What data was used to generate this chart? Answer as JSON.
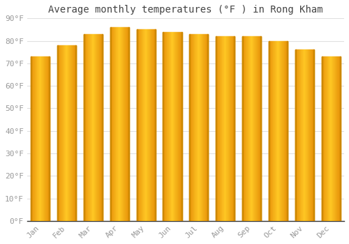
{
  "title": "Average monthly temperatures (°F ) in Rong Kham",
  "months": [
    "Jan",
    "Feb",
    "Mar",
    "Apr",
    "May",
    "Jun",
    "Jul",
    "Aug",
    "Sep",
    "Oct",
    "Nov",
    "Dec"
  ],
  "values": [
    73,
    78,
    83,
    86,
    85,
    84,
    83,
    82,
    82,
    80,
    76,
    73
  ],
  "bar_color_left": "#E8930A",
  "bar_color_center": "#FFC825",
  "bar_color_right": "#E8930A",
  "bar_edge_color": "#CC8800",
  "ylim": [
    0,
    90
  ],
  "yticks": [
    0,
    10,
    20,
    30,
    40,
    50,
    60,
    70,
    80,
    90
  ],
  "ytick_labels": [
    "0°F",
    "10°F",
    "20°F",
    "30°F",
    "40°F",
    "50°F",
    "60°F",
    "70°F",
    "80°F",
    "90°F"
  ],
  "background_color": "#ffffff",
  "plot_bg_color": "#ffffff",
  "grid_color": "#e0e0e0",
  "title_fontsize": 10,
  "tick_fontsize": 8,
  "font_family": "monospace",
  "tick_color": "#999999",
  "spine_color": "#333333"
}
